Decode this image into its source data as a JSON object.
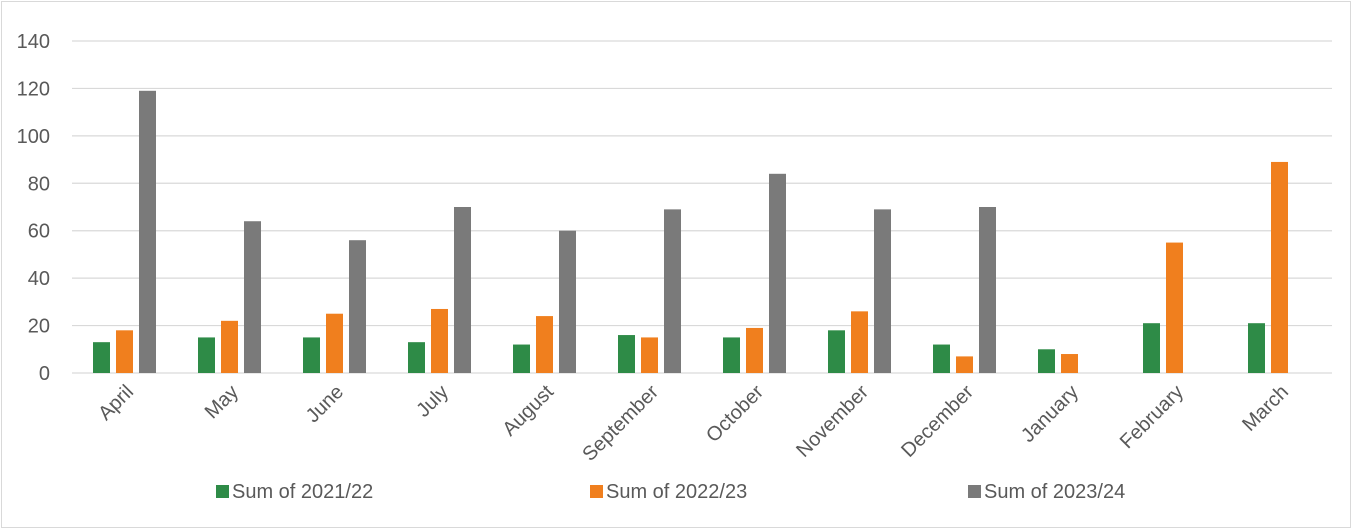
{
  "chart_data": {
    "type": "bar",
    "title": "",
    "xlabel": "",
    "ylabel": "",
    "ylim": [
      0,
      140
    ],
    "yticks": [
      0,
      20,
      40,
      60,
      80,
      100,
      120,
      140
    ],
    "grid": true,
    "legend_position": "bottom",
    "categories": [
      "April",
      "May",
      "June",
      "July",
      "August",
      "September",
      "October",
      "November",
      "December",
      "January",
      "February",
      "March"
    ],
    "series": [
      {
        "name": "Sum of 2021/22",
        "color": "#2e8b47",
        "values": [
          13,
          15,
          15,
          13,
          12,
          16,
          15,
          18,
          12,
          10,
          21,
          21
        ]
      },
      {
        "name": "Sum of 2022/23",
        "color": "#f07f1e",
        "values": [
          18,
          22,
          25,
          27,
          24,
          15,
          19,
          26,
          7,
          8,
          55,
          89
        ]
      },
      {
        "name": "Sum of 2023/24",
        "color": "#7a7a7a",
        "values": [
          119,
          64,
          56,
          70,
          60,
          69,
          84,
          69,
          70,
          null,
          null,
          null
        ]
      }
    ]
  }
}
